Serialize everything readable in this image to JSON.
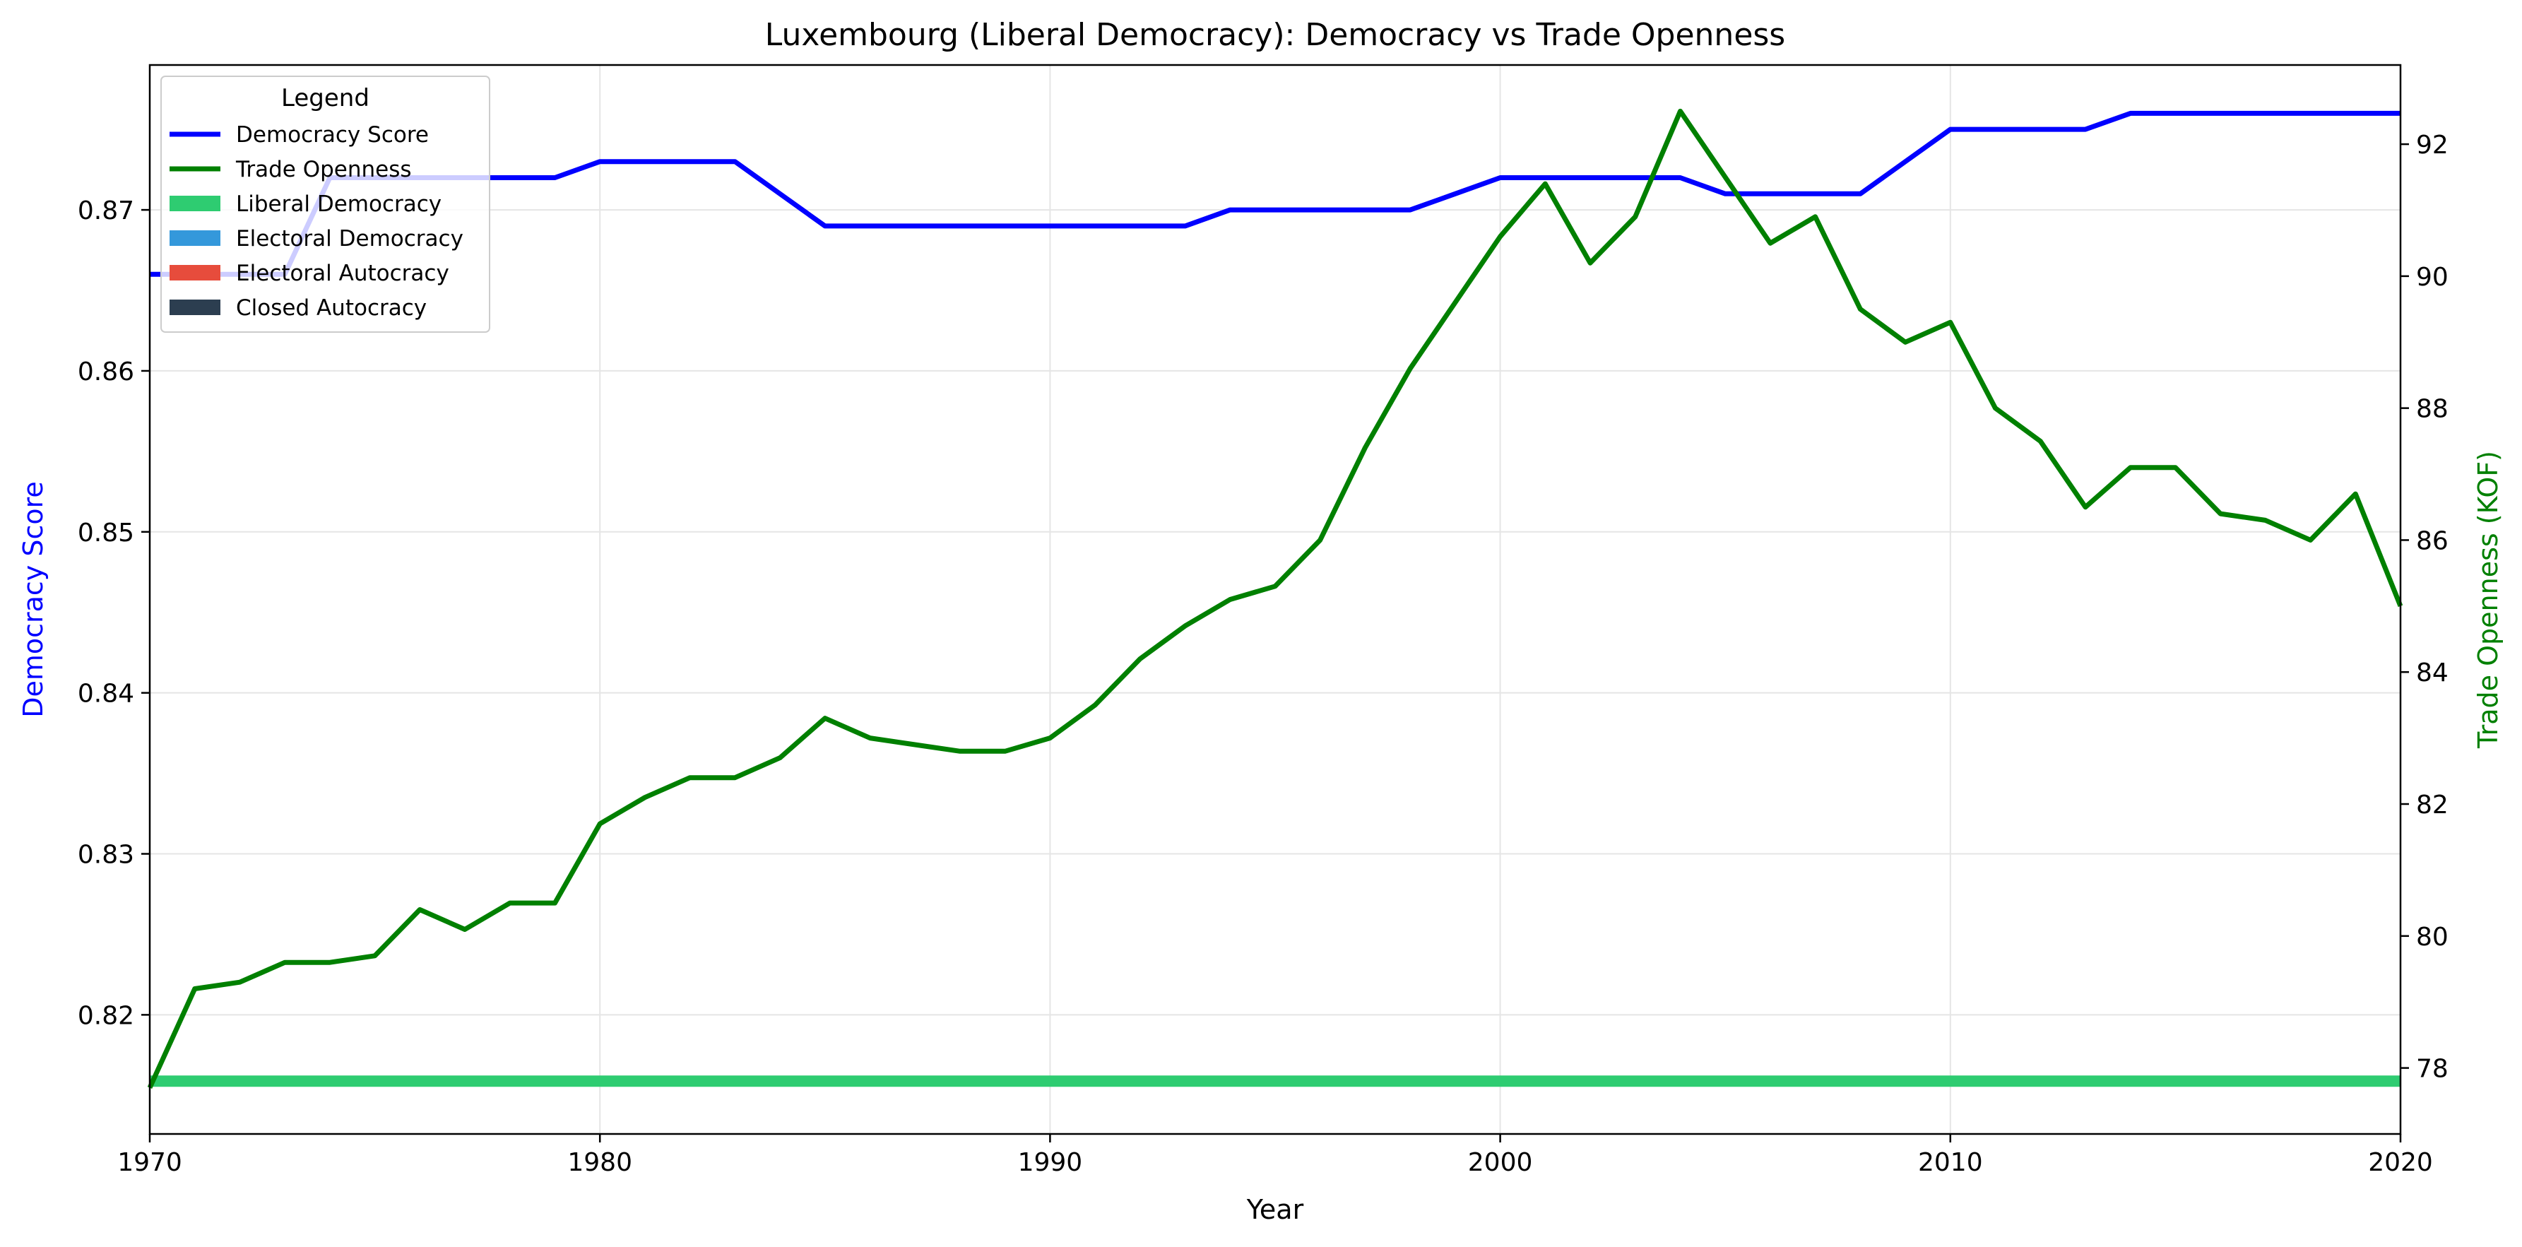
{
  "chart_data": {
    "type": "line",
    "title": "Luxembourg (Liberal Democracy): Democracy vs Trade Openness",
    "xlabel": "Year",
    "ylabel_left": "Democracy Score",
    "ylabel_right": "Trade Openness (KOF)",
    "xlim": [
      1970,
      2020
    ],
    "ylim_left": [
      0.8126,
      0.879
    ],
    "ylim_right": [
      77.0,
      93.2
    ],
    "x_ticks": [
      1970,
      1980,
      1990,
      2000,
      2010,
      2020
    ],
    "y_left_ticks": [
      0.82,
      0.83,
      0.84,
      0.85,
      0.86,
      0.87
    ],
    "y_left_tick_labels": [
      "0.82",
      "0.83",
      "0.84",
      "0.85",
      "0.86",
      "0.87"
    ],
    "y_right_ticks": [
      78,
      80,
      82,
      84,
      86,
      88,
      90,
      92
    ],
    "grid": true,
    "legend": {
      "title": "Legend",
      "placement": "top-left",
      "entries": [
        {
          "label": "Democracy Score",
          "kind": "line",
          "color": "#0000ff"
        },
        {
          "label": "Trade Openness",
          "kind": "line",
          "color": "#008000"
        },
        {
          "label": "Liberal Democracy",
          "kind": "patch",
          "color": "#2ecc71"
        },
        {
          "label": "Electoral Democracy",
          "kind": "patch",
          "color": "#3498db"
        },
        {
          "label": "Electoral Autocracy",
          "kind": "patch",
          "color": "#e74c3c"
        },
        {
          "label": "Closed Autocracy",
          "kind": "patch",
          "color": "#2c3e50"
        }
      ]
    },
    "regime_band": {
      "label": "Liberal Democracy",
      "from": 1970,
      "to": 2020,
      "color": "#2ecc71"
    },
    "x": [
      1970,
      1971,
      1972,
      1973,
      1974,
      1975,
      1976,
      1977,
      1978,
      1979,
      1980,
      1981,
      1982,
      1983,
      1984,
      1985,
      1986,
      1987,
      1988,
      1989,
      1990,
      1991,
      1992,
      1993,
      1994,
      1995,
      1996,
      1997,
      1998,
      1999,
      2000,
      2001,
      2002,
      2003,
      2004,
      2005,
      2006,
      2007,
      2008,
      2009,
      2010,
      2011,
      2012,
      2013,
      2014,
      2015,
      2016,
      2017,
      2018,
      2019,
      2020
    ],
    "series": [
      {
        "name": "Democracy Score",
        "axis": "left",
        "color": "#0000ff",
        "values": [
          0.866,
          0.866,
          0.866,
          0.866,
          0.872,
          0.872,
          0.872,
          0.872,
          0.872,
          0.872,
          0.873,
          0.873,
          0.873,
          0.873,
          0.871,
          0.869,
          0.869,
          0.869,
          0.869,
          0.869,
          0.869,
          0.869,
          0.869,
          0.869,
          0.87,
          0.87,
          0.87,
          0.87,
          0.87,
          0.871,
          0.872,
          0.872,
          0.872,
          0.872,
          0.872,
          0.871,
          0.871,
          0.871,
          0.871,
          0.873,
          0.875,
          0.875,
          0.875,
          0.875,
          0.876,
          0.876,
          0.876,
          0.876,
          0.876,
          0.876,
          0.876
        ]
      },
      {
        "name": "Trade Openness",
        "axis": "right",
        "color": "#008000",
        "values": [
          77.7,
          79.2,
          79.3,
          79.6,
          79.6,
          79.7,
          80.4,
          80.1,
          80.5,
          80.5,
          81.7,
          82.1,
          82.4,
          82.4,
          82.7,
          83.3,
          83.0,
          82.9,
          82.8,
          82.8,
          83.0,
          83.5,
          84.2,
          84.7,
          85.1,
          85.3,
          86.0,
          87.4,
          88.6,
          89.6,
          90.6,
          91.4,
          90.2,
          90.9,
          92.5,
          91.5,
          90.5,
          90.9,
          89.5,
          89.0,
          89.3,
          88.0,
          87.5,
          86.5,
          87.1,
          87.1,
          86.4,
          86.3,
          86.0,
          86.7,
          85.0
        ]
      }
    ]
  }
}
